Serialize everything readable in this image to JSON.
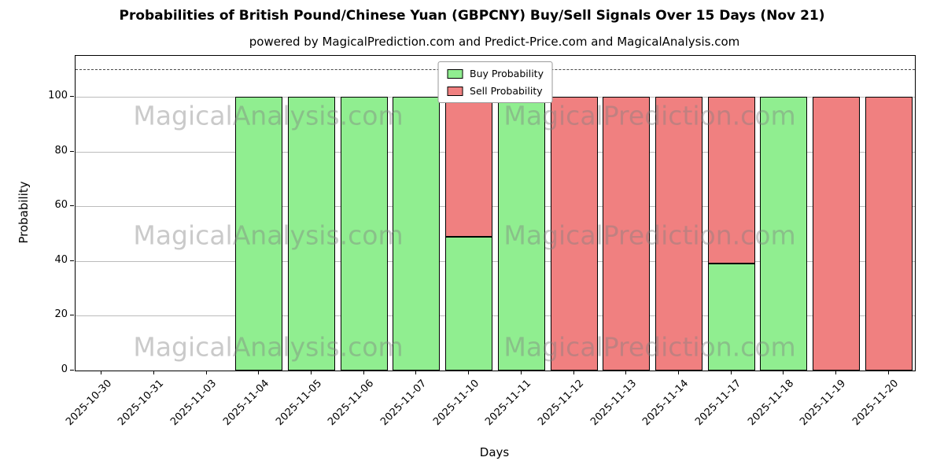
{
  "chart_data": {
    "type": "bar",
    "stacked": true,
    "title": "Probabilities of British Pound/Chinese Yuan (GBPCNY) Buy/Sell Signals Over 15 Days (Nov 21)",
    "subtitle": "powered by MagicalPrediction.com and Predict-Price.com and MagicalAnalysis.com",
    "xlabel": "Days",
    "ylabel": "Probability",
    "ylim": [
      0,
      115
    ],
    "yticks": [
      0,
      20,
      40,
      60,
      80,
      100
    ],
    "reference_line_y": 110,
    "grid": "horizontal",
    "legend_position": "upper center",
    "bar_edge_color": "#000000",
    "categories": [
      "2025-10-30",
      "2025-10-31",
      "2025-11-03",
      "2025-11-04",
      "2025-11-05",
      "2025-11-06",
      "2025-11-07",
      "2025-11-10",
      "2025-11-11",
      "2025-11-12",
      "2025-11-13",
      "2025-11-14",
      "2025-11-17",
      "2025-11-18",
      "2025-11-19",
      "2025-11-20"
    ],
    "series": [
      {
        "name": "Buy Probability",
        "color": "#90ee90",
        "values": [
          0,
          0,
          0,
          100,
          100,
          100,
          100,
          49,
          100,
          0,
          0,
          0,
          39,
          100,
          0,
          0
        ]
      },
      {
        "name": "Sell Probability",
        "color": "#f08080",
        "values": [
          0,
          0,
          0,
          0,
          0,
          0,
          0,
          51,
          0,
          100,
          100,
          100,
          61,
          0,
          100,
          100
        ]
      }
    ],
    "watermarks": [
      "MagicalAnalysis.com",
      "MagicalPrediction.com"
    ]
  }
}
